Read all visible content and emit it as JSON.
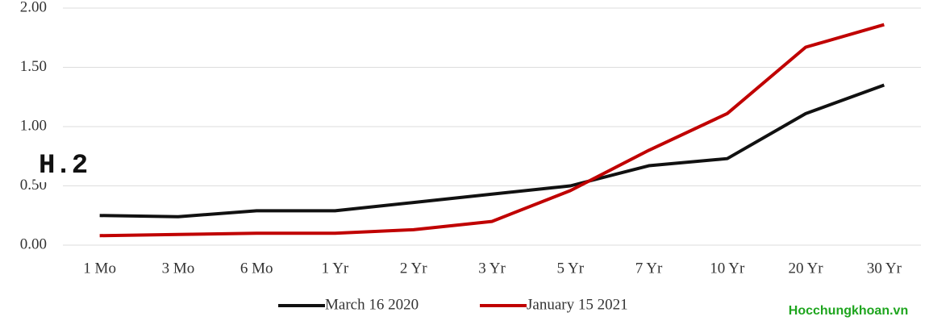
{
  "chart_data": {
    "type": "line",
    "categories": [
      "1 Mo",
      "3 Mo",
      "6 Mo",
      "1 Yr",
      "2 Yr",
      "3 Yr",
      "5 Yr",
      "7 Yr",
      "10 Yr",
      "20 Yr",
      "30 Yr"
    ],
    "series": [
      {
        "name": "March 16 2020",
        "color": "#111111",
        "values": [
          0.25,
          0.24,
          0.29,
          0.29,
          0.36,
          0.43,
          0.5,
          0.67,
          0.73,
          1.11,
          1.35
        ]
      },
      {
        "name": "January 15 2021",
        "color": "#c00000",
        "values": [
          0.08,
          0.09,
          0.1,
          0.1,
          0.13,
          0.2,
          0.46,
          0.8,
          1.11,
          1.67,
          1.86
        ]
      }
    ],
    "ylim": [
      0,
      2
    ],
    "yticks": [
      {
        "value": 0,
        "label": "0.00"
      },
      {
        "value": 0.5,
        "label": "0.50"
      },
      {
        "value": 1,
        "label": "1.00"
      },
      {
        "value": 1.5,
        "label": "1.50"
      },
      {
        "value": 2,
        "label": "2.00"
      }
    ],
    "grid": true,
    "annotation": "H.2",
    "watermark": "Hocchungkhoan.vn"
  }
}
